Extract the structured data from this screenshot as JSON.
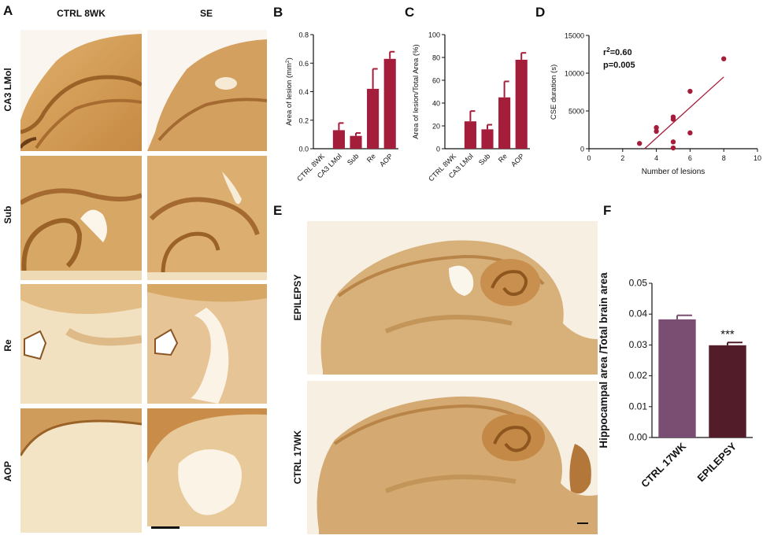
{
  "panel_letters": {
    "a": "A",
    "b": "B",
    "c": "C",
    "d": "D",
    "e": "E",
    "f": "F"
  },
  "panel_a": {
    "columns": [
      "CTRL 8WK",
      "SE"
    ],
    "rows": [
      "CA3 LMol",
      "Sub",
      "Re",
      "AOP"
    ]
  },
  "panel_e": {
    "rows": [
      "EPILEPSY",
      "CTRL 17WK"
    ]
  },
  "colors": {
    "bar_bc": "#a41e3c",
    "bar_f_ctrl": "#7a4e72",
    "bar_f_epi": "#521c29",
    "stain_light": "#f3e3c4",
    "stain_dark": "#c8914f",
    "stain_bg": "#f8f1e3"
  },
  "chart_data": [
    {
      "id": "B",
      "type": "bar",
      "categories": [
        "CTRL 8WK",
        "CA3 LMol",
        "Sub",
        "Re",
        "AOP"
      ],
      "values": [
        0,
        0.13,
        0.09,
        0.42,
        0.63
      ],
      "errors": [
        0,
        0.05,
        0.02,
        0.14,
        0.05
      ],
      "ylabel": "Area of lesion (mm²)",
      "ylim": [
        0,
        0.8
      ],
      "yticks": [
        "0.0",
        "0.2",
        "0.4",
        "0.6",
        "0.8"
      ]
    },
    {
      "id": "C",
      "type": "bar",
      "categories": [
        "CTRL 8WK",
        "CA3 LMol",
        "Sub",
        "Re",
        "AOP"
      ],
      "values": [
        0,
        24,
        17,
        45,
        78
      ],
      "errors": [
        0,
        9,
        4,
        14,
        6
      ],
      "ylabel": "Area of lesion/Total Area (%)",
      "ylim": [
        0,
        100
      ],
      "yticks": [
        "0",
        "20",
        "40",
        "60",
        "80",
        "100"
      ]
    },
    {
      "id": "D",
      "type": "scatter",
      "x": [
        3,
        4,
        4,
        5,
        5,
        5,
        5,
        6,
        6,
        8
      ],
      "y": [
        700,
        2300,
        2800,
        3900,
        4200,
        900,
        100,
        7600,
        2100,
        11900
      ],
      "fit_line": {
        "x": [
          3.3,
          8
        ],
        "y": [
          0,
          9500
        ]
      },
      "annotations": {
        "r2_prefix": "r",
        "r2_sup": "2",
        "r2_value": "=0.60",
        "p": "p=0.005"
      },
      "xlabel": "Number of lesions",
      "ylabel": "CSE duration (s)",
      "xlim": [
        0,
        10
      ],
      "ylim": [
        0,
        15000
      ],
      "xticks": [
        "0",
        "2",
        "4",
        "6",
        "8",
        "10"
      ],
      "yticks": [
        "0",
        "5000",
        "10000",
        "15000"
      ]
    },
    {
      "id": "F",
      "type": "bar",
      "categories": [
        "CTRL 17WK",
        "EPILEPSY"
      ],
      "values": [
        0.0383,
        0.0299
      ],
      "errors": [
        0.0013,
        0.0009
      ],
      "significance": [
        "",
        "***"
      ],
      "ylabel": "Hippocampal area /Total brain area",
      "ylim": [
        0,
        0.05
      ],
      "yticks": [
        "0.00",
        "0.01",
        "0.02",
        "0.03",
        "0.04",
        "0.05"
      ]
    }
  ]
}
